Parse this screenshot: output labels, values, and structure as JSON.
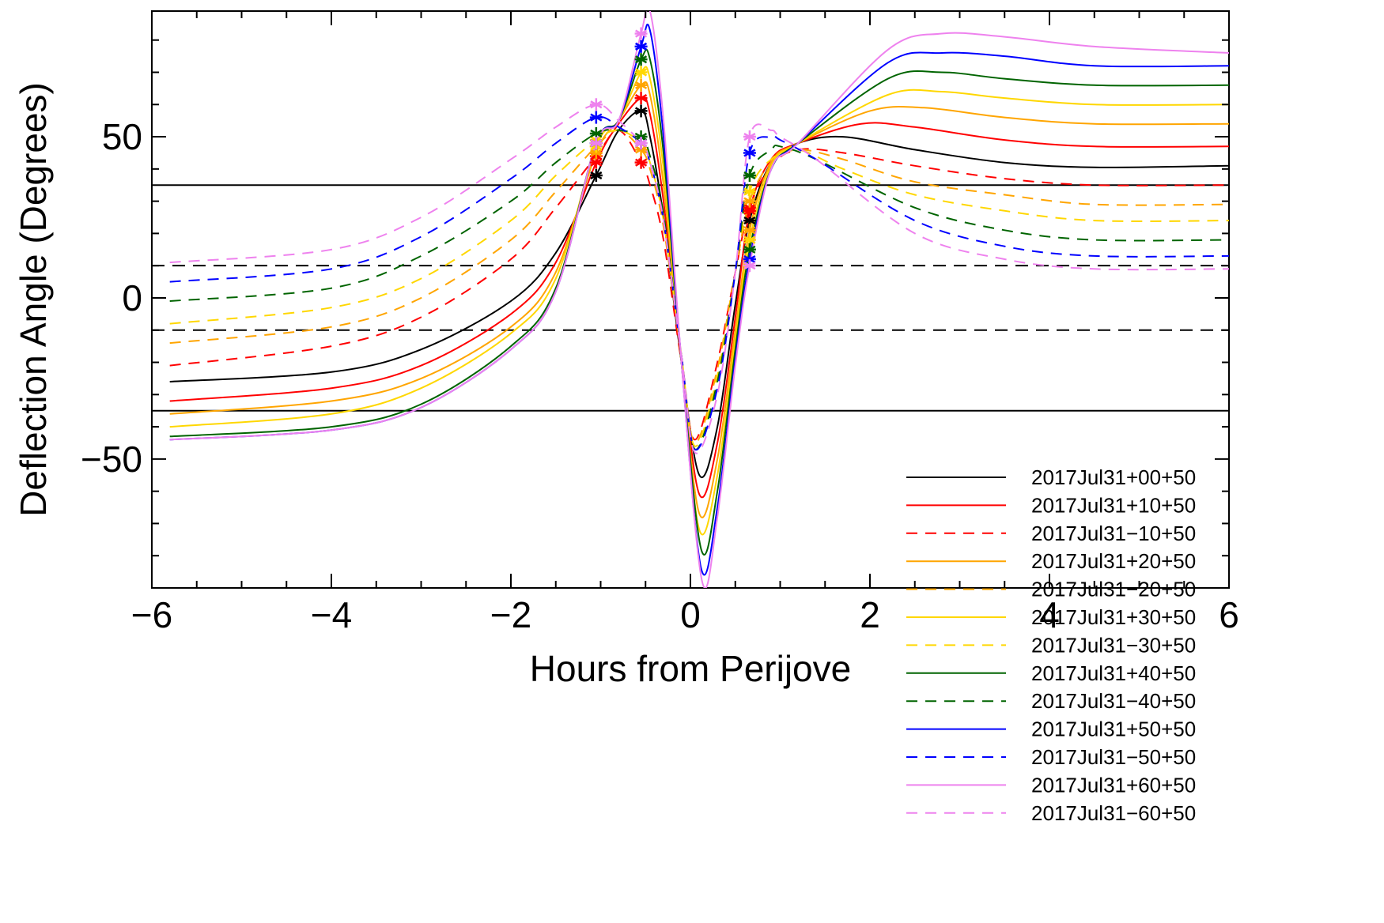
{
  "chart_data": {
    "type": "line",
    "title": "",
    "xlabel": "Hours from Perijove",
    "ylabel": "Deflection Angle (Degrees)",
    "xlim": [
      -6,
      6
    ],
    "ylim": [
      -90,
      89
    ],
    "xticks": [
      -6,
      -4,
      -2,
      0,
      2,
      4,
      6
    ],
    "yticks": [
      -50,
      0,
      50
    ],
    "legend_position": "bottom-right",
    "reference_lines": [
      {
        "y": 35,
        "style": "solid"
      },
      {
        "y": 10,
        "style": "dashed"
      },
      {
        "y": -10,
        "style": "dashed"
      },
      {
        "y": -35,
        "style": "solid"
      }
    ],
    "series": [
      {
        "name": "2017Jul31+00+50",
        "color": "#000000",
        "dash": "solid",
        "x": [
          -5.8,
          -4,
          -3,
          -2,
          -1.5,
          -1.05,
          -0.8,
          -0.55,
          -0.45,
          -0.3,
          -0.1,
          0.1,
          0.3,
          0.5,
          0.66,
          0.9,
          1.2,
          1.7,
          2.5,
          3.5,
          4.5,
          6
        ],
        "y": [
          -26,
          -23,
          -16,
          -1,
          14,
          38,
          52,
          58,
          50,
          25,
          -20,
          -55,
          -40,
          -2,
          24,
          42,
          48,
          50,
          46,
          42,
          40.5,
          41
        ]
      },
      {
        "name": "2017Jul31+10+50",
        "color": "#ff0000",
        "dash": "solid",
        "x": [
          -5.8,
          -4,
          -3,
          -2,
          -1.5,
          -1.05,
          -0.8,
          -0.55,
          -0.45,
          -0.3,
          -0.1,
          0.1,
          0.3,
          0.5,
          0.66,
          0.9,
          1.2,
          1.9,
          2.5,
          3.5,
          4.5,
          6
        ],
        "y": [
          -32,
          -28,
          -21,
          -5,
          11,
          42,
          54,
          62,
          57,
          30,
          -20,
          -61,
          -45,
          -6,
          27,
          43,
          48,
          54,
          53,
          49,
          47,
          47
        ]
      },
      {
        "name": "2017Jul31−10+50",
        "color": "#ff0000",
        "dash": "dashed",
        "x": [
          -5.8,
          -4,
          -3,
          -2,
          -1.5,
          -1.05,
          -0.8,
          -0.55,
          -0.45,
          -0.3,
          -0.1,
          0.05,
          0.3,
          0.5,
          0.66,
          0.9,
          1.2,
          1.7,
          2.5,
          3.5,
          4.5,
          6
        ],
        "y": [
          -21,
          -15,
          -6,
          12,
          28,
          44,
          52,
          42,
          35,
          18,
          -20,
          -44,
          -20,
          8,
          28,
          41,
          46,
          45,
          41,
          37,
          35,
          35
        ]
      },
      {
        "name": "2017Jul31+20+50",
        "color": "#ffa500",
        "dash": "solid",
        "x": [
          -5.8,
          -4,
          -3,
          -2,
          -1.5,
          -1.05,
          -0.8,
          -0.55,
          -0.45,
          -0.3,
          -0.1,
          0.1,
          0.3,
          0.5,
          0.66,
          0.9,
          1.2,
          2.0,
          2.6,
          3.5,
          4.5,
          6
        ],
        "y": [
          -36,
          -32,
          -25,
          -9,
          8,
          45,
          55,
          66,
          63,
          35,
          -20,
          -67,
          -50,
          -10,
          21,
          42,
          48,
          58,
          59,
          56,
          54,
          54
        ]
      },
      {
        "name": "2017Jul31−20+50",
        "color": "#ffa500",
        "dash": "dashed",
        "x": [
          -5.8,
          -4,
          -3,
          -2,
          -1.5,
          -1.05,
          -0.8,
          -0.55,
          -0.45,
          -0.3,
          -0.1,
          0.05,
          0.3,
          0.5,
          0.66,
          0.9,
          1.2,
          1.7,
          2.5,
          3.5,
          4.5,
          6
        ],
        "y": [
          -14,
          -9,
          0,
          18,
          33,
          47,
          52,
          46,
          40,
          22,
          -18,
          -45,
          -22,
          8,
          30,
          42,
          46,
          43,
          36,
          32,
          29,
          29
        ]
      },
      {
        "name": "2017Jul31+30+50",
        "color": "#ffd700",
        "dash": "solid",
        "x": [
          -5.8,
          -4,
          -3,
          -2,
          -1.5,
          -1.05,
          -0.8,
          -0.55,
          -0.45,
          -0.3,
          -0.1,
          0.1,
          0.3,
          0.5,
          0.66,
          0.9,
          1.2,
          2.2,
          2.8,
          3.5,
          4.5,
          6
        ],
        "y": [
          -40,
          -36,
          -28,
          -11,
          6,
          47,
          55,
          70,
          68,
          40,
          -20,
          -72,
          -55,
          -13,
          18,
          41,
          48,
          63,
          64,
          62,
          60,
          60
        ]
      },
      {
        "name": "2017Jul31−30+50",
        "color": "#ffd700",
        "dash": "dashed",
        "x": [
          -5.8,
          -4,
          -3,
          -2,
          -1.5,
          -1.05,
          -0.8,
          -0.55,
          -0.45,
          -0.3,
          -0.1,
          0.05,
          0.3,
          0.5,
          0.66,
          0.9,
          1.2,
          1.7,
          2.5,
          3.5,
          4.5,
          6
        ],
        "y": [
          -8,
          -3,
          6,
          24,
          38,
          49,
          52,
          48,
          42,
          24,
          -18,
          -46,
          -24,
          8,
          33,
          43,
          46,
          40,
          32,
          27,
          24,
          24
        ]
      },
      {
        "name": "2017Jul31+40+50",
        "color": "#006400",
        "dash": "solid",
        "x": [
          -5.8,
          -4,
          -3,
          -2,
          -1.5,
          -1.05,
          -0.8,
          -0.55,
          -0.45,
          -0.3,
          -0.1,
          0.12,
          0.3,
          0.5,
          0.66,
          0.9,
          1.2,
          2.2,
          2.8,
          3.5,
          4.5,
          6
        ],
        "y": [
          -43,
          -40,
          -33,
          -15,
          3,
          48,
          55,
          74,
          74,
          45,
          -20,
          -78,
          -60,
          -16,
          15,
          40,
          48,
          68,
          70,
          68,
          66,
          66
        ]
      },
      {
        "name": "2017Jul31−40+50",
        "color": "#006400",
        "dash": "dashed",
        "x": [
          -5.8,
          -4,
          -3,
          -2,
          -1.5,
          -1.05,
          -0.8,
          -0.55,
          -0.45,
          -0.3,
          -0.1,
          0.05,
          0.3,
          0.5,
          0.66,
          0.9,
          1.0,
          1.4,
          2.5,
          3.5,
          4.5,
          6
        ],
        "y": [
          -1,
          3,
          13,
          30,
          42,
          51,
          52,
          50,
          44,
          26,
          -18,
          -47,
          -26,
          8,
          38,
          46,
          47,
          43,
          28,
          21,
          18,
          18
        ]
      },
      {
        "name": "2017Jul31+50+50",
        "color": "#0000ff",
        "dash": "solid",
        "x": [
          -5.8,
          -4,
          -3,
          -2,
          -1.5,
          -1.05,
          -0.8,
          -0.55,
          -0.45,
          -0.3,
          -0.1,
          0.12,
          0.3,
          0.5,
          0.66,
          0.9,
          1.2,
          2.2,
          2.8,
          3.5,
          4.5,
          6
        ],
        "y": [
          -44,
          -41,
          -34,
          -16,
          2,
          48,
          55,
          78,
          83,
          50,
          -20,
          -84,
          -65,
          -19,
          12,
          40,
          48,
          73,
          76,
          75,
          72,
          72
        ]
      },
      {
        "name": "2017Jul31−50+50",
        "color": "#0000ff",
        "dash": "dashed",
        "x": [
          -5.8,
          -4,
          -3,
          -2,
          -1.5,
          -1.05,
          -0.8,
          -0.55,
          -0.45,
          -0.3,
          -0.1,
          0.05,
          0.3,
          0.5,
          0.66,
          0.9,
          1.0,
          1.4,
          2.5,
          3.5,
          4.5,
          6
        ],
        "y": [
          5,
          9,
          19,
          37,
          48,
          56,
          53,
          48,
          42,
          24,
          -18,
          -47,
          -28,
          8,
          45,
          50,
          49,
          43,
          24,
          16,
          13,
          13
        ]
      },
      {
        "name": "2017Jul31+60+50",
        "color": "#ee82ee",
        "dash": "solid",
        "x": [
          -5.8,
          -4,
          -3,
          -2,
          -1.5,
          -1.05,
          -0.8,
          -0.55,
          -0.45,
          -0.3,
          -0.1,
          0.13,
          0.3,
          0.5,
          0.66,
          0.9,
          1.2,
          2.2,
          2.8,
          3.5,
          4.5,
          6
        ],
        "y": [
          -44,
          -41,
          -34,
          -16,
          2,
          48,
          55,
          82,
          89,
          55,
          -20,
          -88,
          -68,
          -21,
          10,
          40,
          48,
          77,
          82,
          81,
          78,
          76
        ]
      },
      {
        "name": "2017Jul31−60+50",
        "color": "#ee82ee",
        "dash": "dashed",
        "x": [
          -5.8,
          -4,
          -3,
          -2,
          -1.5,
          -1.05,
          -0.8,
          -0.55,
          -0.45,
          -0.3,
          -0.1,
          0.05,
          0.3,
          0.5,
          0.66,
          0.9,
          1.0,
          1.4,
          2.5,
          3.5,
          4.5,
          6
        ],
        "y": [
          11,
          15,
          25,
          43,
          53,
          60,
          55,
          48,
          42,
          24,
          -18,
          -48,
          -30,
          8,
          50,
          52,
          50,
          43,
          20,
          12,
          9,
          9
        ]
      }
    ],
    "markers": [
      {
        "x": -1.05,
        "symbol": "asterisk"
      },
      {
        "x": -0.55,
        "symbol": "asterisk"
      },
      {
        "x": 0.66,
        "symbol": "asterisk"
      }
    ]
  }
}
